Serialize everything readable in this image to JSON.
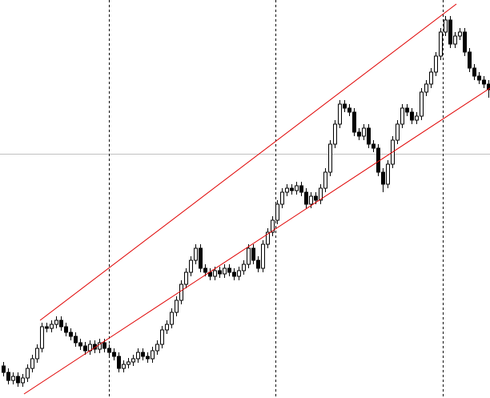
{
  "chart_data": {
    "type": "candlestick",
    "xlim": [
      -0.67,
      101.33
    ],
    "ylim": [
      0,
      497
    ],
    "open": [
      40,
      32,
      22,
      27,
      19,
      25,
      37,
      49,
      62,
      89,
      87,
      92,
      97,
      89,
      82,
      77,
      69,
      65,
      59,
      67,
      61,
      69,
      62,
      57,
      52,
      37,
      42,
      45,
      49,
      57,
      52,
      49,
      59,
      67,
      85,
      92,
      107,
      122,
      142,
      157,
      172,
      187,
      162,
      157,
      152,
      159,
      155,
      162,
      157,
      152,
      159,
      167,
      187,
      172,
      162,
      192,
      207,
      222,
      242,
      257,
      262,
      259,
      265,
      257,
      242,
      252,
      247,
      262,
      282,
      317,
      342,
      367,
      362,
      357,
      332,
      327,
      337,
      317,
      312,
      282,
      267,
      292,
      322,
      342,
      362,
      357,
      347,
      352,
      382,
      392,
      407,
      427,
      457,
      472,
      442,
      452,
      457,
      432,
      412,
      402,
      397,
      392
    ],
    "high": [
      45,
      37,
      32,
      32,
      30,
      42,
      54,
      67,
      94,
      94,
      97,
      102,
      102,
      94,
      87,
      82,
      74,
      70,
      72,
      72,
      74,
      74,
      67,
      62,
      57,
      47,
      50,
      54,
      62,
      62,
      57,
      64,
      72,
      90,
      97,
      112,
      127,
      147,
      162,
      177,
      192,
      192,
      167,
      162,
      164,
      164,
      167,
      167,
      162,
      164,
      172,
      192,
      192,
      177,
      197,
      212,
      227,
      247,
      262,
      267,
      267,
      270,
      270,
      262,
      257,
      257,
      267,
      287,
      322,
      347,
      372,
      372,
      367,
      362,
      337,
      342,
      342,
      322,
      317,
      287,
      297,
      327,
      347,
      367,
      367,
      362,
      357,
      387,
      397,
      412,
      432,
      462,
      477,
      477,
      457,
      462,
      462,
      437,
      417,
      407,
      402,
      397
    ],
    "low": [
      27,
      17,
      17,
      14,
      14,
      20,
      32,
      44,
      57,
      82,
      82,
      87,
      84,
      77,
      72,
      64,
      60,
      54,
      54,
      56,
      56,
      57,
      52,
      47,
      32,
      32,
      37,
      40,
      44,
      47,
      44,
      44,
      54,
      62,
      80,
      87,
      102,
      117,
      137,
      152,
      167,
      157,
      152,
      147,
      147,
      150,
      150,
      152,
      147,
      147,
      154,
      162,
      167,
      157,
      157,
      187,
      202,
      217,
      237,
      252,
      254,
      254,
      252,
      237,
      237,
      242,
      242,
      257,
      277,
      312,
      337,
      357,
      352,
      327,
      322,
      322,
      312,
      307,
      277,
      257,
      262,
      287,
      317,
      337,
      352,
      342,
      342,
      347,
      377,
      387,
      402,
      422,
      452,
      437,
      437,
      447,
      427,
      407,
      397,
      392,
      387,
      375
    ],
    "close": [
      32,
      22,
      27,
      19,
      25,
      37,
      49,
      62,
      89,
      87,
      92,
      97,
      89,
      82,
      77,
      69,
      65,
      59,
      67,
      61,
      69,
      62,
      57,
      52,
      37,
      42,
      45,
      49,
      57,
      52,
      49,
      59,
      67,
      85,
      92,
      107,
      122,
      142,
      157,
      172,
      187,
      162,
      157,
      152,
      159,
      155,
      162,
      157,
      152,
      159,
      167,
      187,
      172,
      162,
      192,
      207,
      222,
      242,
      257,
      262,
      259,
      265,
      257,
      242,
      252,
      247,
      262,
      282,
      317,
      342,
      367,
      362,
      357,
      332,
      327,
      337,
      317,
      312,
      282,
      267,
      292,
      322,
      342,
      362,
      357,
      347,
      352,
      382,
      392,
      407,
      427,
      457,
      472,
      442,
      452,
      457,
      432,
      412,
      402,
      397,
      392,
      385
    ],
    "up_color": "#ffffff",
    "down_color": "#000000",
    "outline_color": "#000000",
    "channels": [
      {
        "color": "#e00000",
        "x": [
          7.67,
          94.33
        ],
        "y": [
          97,
          492
        ]
      },
      {
        "color": "#e00000",
        "x": [
          4.33,
          101.33
        ],
        "y": [
          5,
          387
        ]
      }
    ]
  }
}
